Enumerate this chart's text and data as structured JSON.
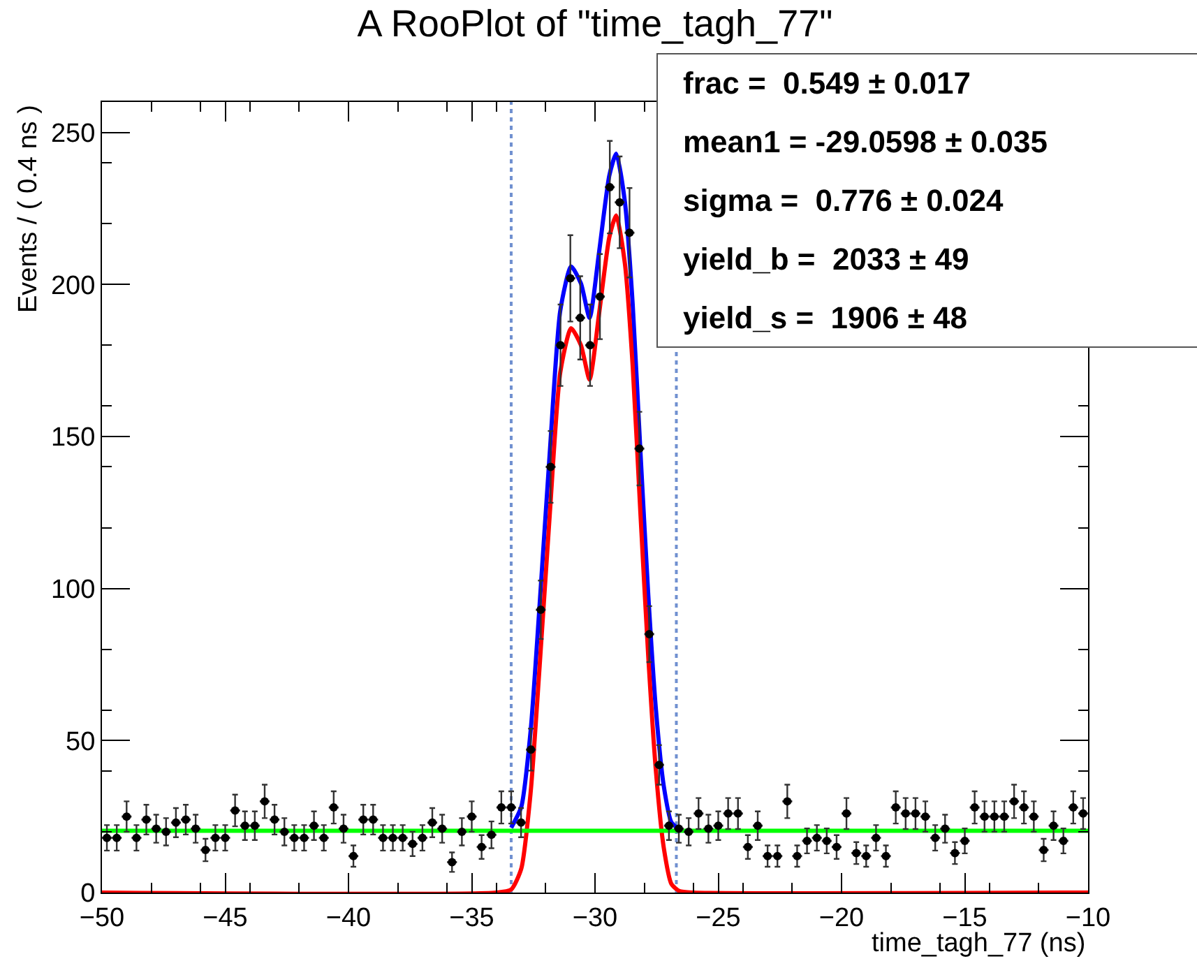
{
  "chart_data": {
    "type": "scatter",
    "title": "A RooPlot of \"time_tagh_77\"",
    "xlabel": "time_tagh_77 (ns)",
    "ylabel": "Events / ( 0.4 ns )",
    "xlim": [
      -50,
      -10
    ],
    "xticks": [
      -50,
      -45,
      -40,
      -35,
      -30,
      -25,
      -20,
      -15,
      -10
    ],
    "ylim": [
      0,
      260
    ],
    "yticks": [
      0,
      50,
      100,
      150,
      200,
      250
    ],
    "grid": false,
    "annotations": [
      "frac =  0.549 ± 0.017",
      "mean1 = -29.0598 ± 0.035",
      "sigma =  0.776 ± 0.024",
      "yield_b =  2033 ± 49",
      "yield_s =  1906 ± 48"
    ],
    "ref_lines": [
      {
        "axis": "x",
        "value": -33.4,
        "color": "#7090d0",
        "line_style": "dotted"
      },
      {
        "axis": "x",
        "value": -26.7,
        "color": "#7090d0",
        "line_style": "dotted"
      }
    ],
    "series": [
      {
        "marker": "circle",
        "color": "#000000",
        "x": [
          -49.8,
          -49.4,
          -49,
          -48.6,
          -48.2,
          -47.8,
          -47.4,
          -47,
          -46.6,
          -46.2,
          -45.8,
          -45.4,
          -45,
          -44.6,
          -44.2,
          -43.8,
          -43.4,
          -43,
          -42.6,
          -42.2,
          -41.8,
          -41.4,
          -41,
          -40.6,
          -40.2,
          -39.8,
          -39.4,
          -39,
          -38.6,
          -38.2,
          -37.8,
          -37.4,
          -37,
          -36.6,
          -36.2,
          -35.8,
          -35.4,
          -35,
          -34.6,
          -34.2,
          -33.8,
          -33.4,
          -33,
          -32.6,
          -32.2,
          -31.8,
          -31.4,
          -31,
          -30.6,
          -30.2,
          -29.8,
          -29.4,
          -29,
          -28.6,
          -28.2,
          -27.8,
          -27.4,
          -27,
          -26.6,
          -26.2,
          -25.8,
          -25.4,
          -25,
          -24.6,
          -24.2,
          -23.8,
          -23.4,
          -23,
          -22.6,
          -22.2,
          -21.8,
          -21.4,
          -21,
          -20.6,
          -20.2,
          -19.8,
          -19.4,
          -19,
          -18.6,
          -18.2,
          -17.8,
          -17.4,
          -17,
          -16.6,
          -16.2,
          -15.8,
          -15.4,
          -15,
          -14.6,
          -14.2,
          -13.8,
          -13.4,
          -13,
          -12.6,
          -12.2,
          -11.8,
          -11.4,
          -11,
          -10.6,
          -10.2
        ],
        "values": [
          18,
          18,
          25,
          18,
          24,
          21,
          20,
          23,
          24,
          21,
          14,
          18,
          18,
          27,
          22,
          22,
          30,
          24,
          20,
          18,
          18,
          22,
          18,
          28,
          21,
          12,
          24,
          24,
          18,
          18,
          18,
          16,
          18,
          23,
          21,
          10,
          20,
          25,
          15,
          19,
          28,
          28,
          23,
          47,
          93,
          140,
          180,
          202,
          189,
          180,
          196,
          232,
          227,
          217,
          146,
          85,
          42,
          22,
          21,
          20,
          26,
          21,
          22,
          26,
          26,
          15,
          22,
          12,
          12,
          30,
          12,
          17,
          18,
          17,
          15,
          26,
          13,
          12,
          18,
          12,
          28,
          26,
          26,
          25,
          18,
          21,
          13,
          17,
          28,
          25,
          25,
          25,
          30,
          28,
          25,
          14,
          22,
          17,
          28,
          26
        ],
        "errors": [
          4.2,
          4.2,
          5,
          4.2,
          4.9,
          4.6,
          4.5,
          4.8,
          4.9,
          4.6,
          3.7,
          4.2,
          4.2,
          5.2,
          4.7,
          4.7,
          5.5,
          4.9,
          4.5,
          4.2,
          4.2,
          4.7,
          4.2,
          5.3,
          4.6,
          3.5,
          4.9,
          4.9,
          4.2,
          4.2,
          4.2,
          4,
          4.2,
          4.8,
          4.6,
          3.2,
          4.5,
          5,
          3.9,
          4.4,
          5.3,
          5.3,
          4.8,
          6.9,
          9.6,
          11.8,
          13.4,
          14.2,
          13.7,
          13.4,
          14,
          15.2,
          15.1,
          14.7,
          12.1,
          9.2,
          6.5,
          4.7,
          4.6,
          4.5,
          5.1,
          4.6,
          4.7,
          5.1,
          5.1,
          3.9,
          4.7,
          3.5,
          3.5,
          5.5,
          3.5,
          4.1,
          4.2,
          4.1,
          3.9,
          5.1,
          3.6,
          3.5,
          4.2,
          3.5,
          5.3,
          5.1,
          5.1,
          5,
          4.2,
          4.6,
          3.6,
          4.1,
          5.3,
          5,
          5,
          5,
          5.5,
          5.3,
          5,
          3.7,
          4.7,
          4.1,
          5.3,
          5.1
        ],
        "xerrors": [
          0.2,
          0.2,
          0.2,
          0.2,
          0.2,
          0.2,
          0.2,
          0.2,
          0.2,
          0.2,
          0.2,
          0.2,
          0.2,
          0.2,
          0.2,
          0.2,
          0.2,
          0.2,
          0.2,
          0.2,
          0.2,
          0.2,
          0.2,
          0.2,
          0.2,
          0.2,
          0.2,
          0.2,
          0.2,
          0.2,
          0.2,
          0.2,
          0.2,
          0.2,
          0.2,
          0.2,
          0.2,
          0.2,
          0.2,
          0.2,
          0.2,
          0.2,
          0.2,
          0.2,
          0.2,
          0.2,
          0.2,
          0.2,
          0.2,
          0.2,
          0.2,
          0.2,
          0.2,
          0.2,
          0.2,
          0.2,
          0.2,
          0.2,
          0.2,
          0.2,
          0.2,
          0.2,
          0.2,
          0.2,
          0.2,
          0.2,
          0.2,
          0.2,
          0.2,
          0.2,
          0.2,
          0.2,
          0.2,
          0.2,
          0.2,
          0.2,
          0.2,
          0.2,
          0.2,
          0.2,
          0.2,
          0.2,
          0.2,
          0.2,
          0.2,
          0.2,
          0.2,
          0.2,
          0.2,
          0.2,
          0.2,
          0.2,
          0.2,
          0.2,
          0.2,
          0.2,
          0.2,
          0.2,
          0.2,
          0.2
        ]
      },
      {
        "type": "line",
        "color": "#0000ff",
        "x": [
          -33.4,
          -32.99,
          -32.61,
          -32.25,
          -31.83,
          -31.41,
          -30.97,
          -30.57,
          -30.22,
          -29.84,
          -29.42,
          -29.14,
          -28.79,
          -28.47,
          -28.16,
          -27.84,
          -27.53,
          -27.21,
          -26.9,
          -26.58
        ],
        "values": [
          21.3,
          28.2,
          53.3,
          94.3,
          145.3,
          191.3,
          205.9,
          200.3,
          189,
          210.3,
          235.8,
          243,
          227.3,
          193.3,
          145.3,
          98,
          60.3,
          35,
          23.1,
          20.8
        ]
      },
      {
        "type": "line",
        "color": "#ff0000",
        "x": [
          -50,
          -34,
          -33.4,
          -32.99,
          -32.61,
          -32.25,
          -31.83,
          -31.41,
          -30.97,
          -30.57,
          -30.22,
          -29.84,
          -29.42,
          -29.14,
          -28.79,
          -28.47,
          -28.16,
          -27.84,
          -27.53,
          -27.21,
          -26.9,
          -26.58,
          -26,
          -10
        ],
        "values": [
          0,
          0,
          1,
          7.9,
          33,
          74,
          125,
          171,
          185.6,
          180,
          168.7,
          190,
          215.5,
          222.7,
          207,
          173,
          125,
          77.7,
          40,
          14.7,
          2.8,
          0.5,
          0,
          0
        ]
      },
      {
        "type": "line",
        "color": "#00ff00",
        "x": [
          -50,
          -10
        ],
        "values": [
          20.3,
          20.3
        ]
      }
    ]
  }
}
